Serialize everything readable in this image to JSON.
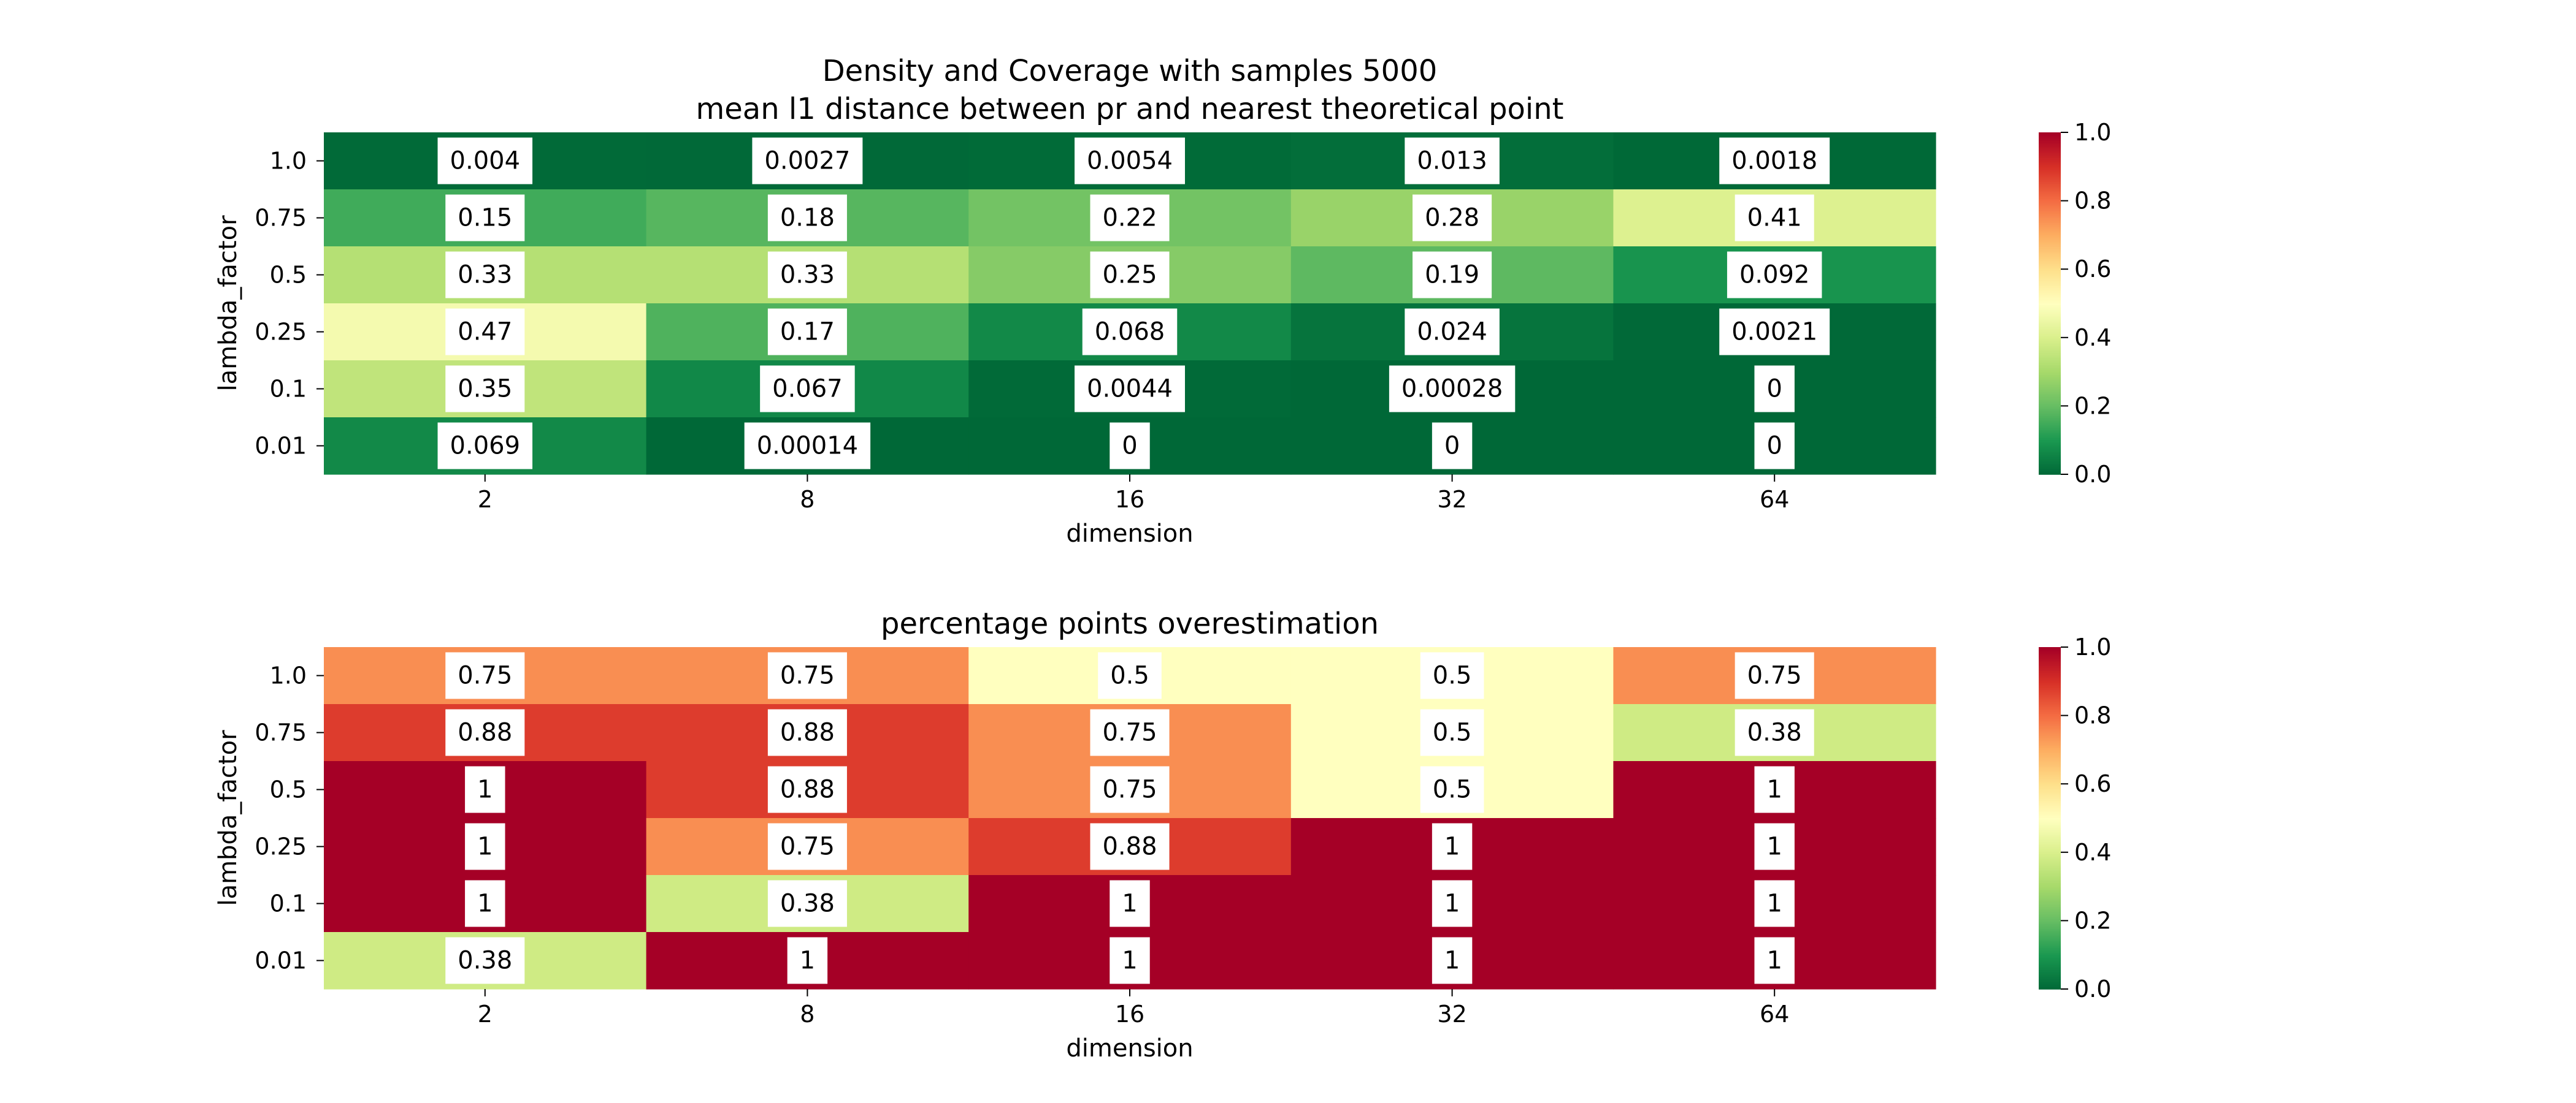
{
  "chart_data": [
    {
      "type": "heatmap",
      "title": "Density and Coverage with samples 5000\nmean l1 distance between pr and nearest theoretical point",
      "xlabel": "dimension",
      "ylabel": "lambda_factor",
      "x": [
        "2",
        "8",
        "16",
        "32",
        "64"
      ],
      "y": [
        "1.0",
        "0.75",
        "0.5",
        "0.25",
        "0.1",
        "0.01"
      ],
      "values": [
        [
          0.004,
          0.0027,
          0.0054,
          0.013,
          0.0018
        ],
        [
          0.15,
          0.18,
          0.22,
          0.28,
          0.41
        ],
        [
          0.33,
          0.33,
          0.25,
          0.19,
          0.092
        ],
        [
          0.47,
          0.17,
          0.068,
          0.024,
          0.0021
        ],
        [
          0.35,
          0.067,
          0.0044,
          0.00028,
          0
        ],
        [
          0.069,
          0.00014,
          0,
          0,
          0
        ]
      ],
      "annotations": [
        [
          "0.004",
          "0.0027",
          "0.0054",
          "0.013",
          "0.0018"
        ],
        [
          "0.15",
          "0.18",
          "0.22",
          "0.28",
          "0.41"
        ],
        [
          "0.33",
          "0.33",
          "0.25",
          "0.19",
          "0.092"
        ],
        [
          "0.47",
          "0.17",
          "0.068",
          "0.024",
          "0.0021"
        ],
        [
          "0.35",
          "0.067",
          "0.0044",
          "0.00028",
          "0"
        ],
        [
          "0.069",
          "0.00014",
          "0",
          "0",
          "0"
        ]
      ],
      "colormap": "RdYlGn_r",
      "vmin": 0,
      "vmax": 1,
      "colorbar_ticks": [
        "0.0",
        "0.2",
        "0.4",
        "0.6",
        "0.8",
        "1.0"
      ]
    },
    {
      "type": "heatmap",
      "title": "percentage points overestimation",
      "xlabel": "dimension",
      "ylabel": "lambda_factor",
      "x": [
        "2",
        "8",
        "16",
        "32",
        "64"
      ],
      "y": [
        "1.0",
        "0.75",
        "0.5",
        "0.25",
        "0.1",
        "0.01"
      ],
      "values": [
        [
          0.75,
          0.75,
          0.5,
          0.5,
          0.75
        ],
        [
          0.88,
          0.88,
          0.75,
          0.5,
          0.38
        ],
        [
          1,
          0.88,
          0.75,
          0.5,
          1
        ],
        [
          1,
          0.75,
          0.88,
          1,
          1
        ],
        [
          1,
          0.38,
          1,
          1,
          1
        ],
        [
          0.38,
          1,
          1,
          1,
          1
        ]
      ],
      "annotations": [
        [
          "0.75",
          "0.75",
          "0.5",
          "0.5",
          "0.75"
        ],
        [
          "0.88",
          "0.88",
          "0.75",
          "0.5",
          "0.38"
        ],
        [
          "1",
          "0.88",
          "0.75",
          "0.5",
          "1"
        ],
        [
          "1",
          "0.75",
          "0.88",
          "1",
          "1"
        ],
        [
          "1",
          "0.38",
          "1",
          "1",
          "1"
        ],
        [
          "0.38",
          "1",
          "1",
          "1",
          "1"
        ]
      ],
      "colormap": "RdYlGn_r",
      "vmin": 0,
      "vmax": 1,
      "colorbar_ticks": [
        "0.0",
        "0.2",
        "0.4",
        "0.6",
        "0.8",
        "1.0"
      ]
    }
  ]
}
